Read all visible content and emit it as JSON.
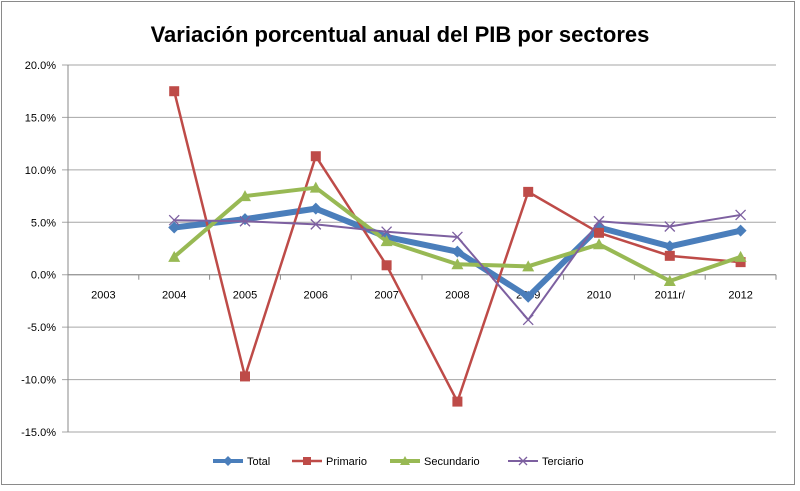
{
  "chart_data": {
    "type": "line",
    "title": "Variación porcentual anual del PIB por sectores",
    "categories": [
      "2003",
      "2004",
      "2005",
      "2006",
      "2007",
      "2008",
      "2009",
      "2010",
      "2011r/",
      "2012"
    ],
    "yticks": [
      "20.0%",
      "15.0%",
      "10.0%",
      "5.0%",
      "0.0%",
      "-5.0%",
      "-10.0%",
      "-15.0%"
    ],
    "ylim": [
      -15,
      20
    ],
    "grid": true,
    "legend": "bottom",
    "series": [
      {
        "name": "Total",
        "color": "#4a7ebb",
        "marker": "diamond",
        "values": [
          null,
          4.5,
          5.3,
          6.3,
          3.6,
          2.2,
          -2.1,
          4.5,
          2.7,
          4.2
        ]
      },
      {
        "name": "Primario",
        "color": "#be4b48",
        "marker": "square",
        "values": [
          null,
          17.5,
          -9.7,
          11.3,
          0.9,
          -12.1,
          7.9,
          4.0,
          1.8,
          1.2
        ]
      },
      {
        "name": "Secundario",
        "color": "#98b954",
        "marker": "triangle",
        "values": [
          null,
          1.7,
          7.5,
          8.3,
          3.2,
          1.0,
          0.8,
          2.9,
          -0.6,
          1.7
        ]
      },
      {
        "name": "Terciario",
        "color": "#7d60a0",
        "marker": "x",
        "values": [
          null,
          5.2,
          5.1,
          4.8,
          4.1,
          3.6,
          -4.3,
          5.1,
          4.6,
          5.7
        ]
      }
    ]
  }
}
